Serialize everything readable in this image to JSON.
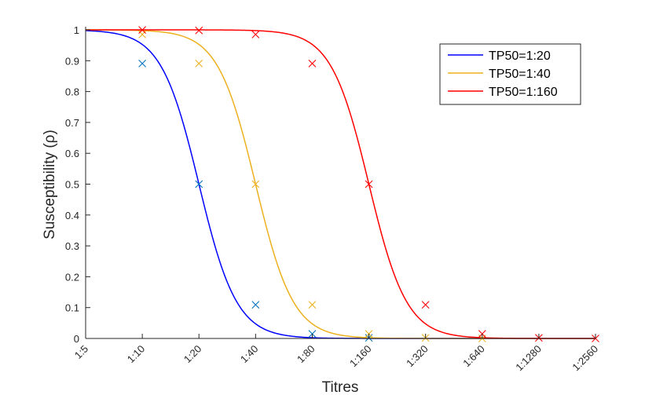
{
  "chart_data": {
    "type": "line",
    "xlabel": "Titres",
    "ylabel": "Susceptibility (ρ)",
    "ylim": [
      0,
      1
    ],
    "yticks": [
      0,
      0.1,
      0.2,
      0.3,
      0.4,
      0.5,
      0.6,
      0.7,
      0.8,
      0.9,
      1
    ],
    "x_scale": "log2",
    "categories": [
      "1:5",
      "1:10",
      "1:20",
      "1:40",
      "1:80",
      "1:160",
      "1:320",
      "1:640",
      "1:1280",
      "1:2560"
    ],
    "grid": false,
    "legend_position": "top-right",
    "series": [
      {
        "name": "TP50=1:20",
        "color": "#0000ff",
        "marker_color": "#0072bd",
        "tp50_index": 2,
        "marker_categories": [
          "1:10",
          "1:20",
          "1:40",
          "1:80",
          "1:160"
        ],
        "marker_values": [
          0.891,
          0.5,
          0.109,
          0.015,
          0.002
        ]
      },
      {
        "name": "TP50=1:40",
        "color": "#edb120",
        "marker_color": "#edb120",
        "tp50_index": 3,
        "marker_categories": [
          "1:10",
          "1:20",
          "1:40",
          "1:80",
          "1:160",
          "1:320",
          "1:640"
        ],
        "marker_values": [
          0.985,
          0.891,
          0.5,
          0.109,
          0.015,
          0.002,
          0.0
        ]
      },
      {
        "name": "TP50=1:160",
        "color": "#ff0000",
        "marker_color": "#ff0000",
        "tp50_index": 5,
        "marker_categories": [
          "1:10",
          "1:20",
          "1:40",
          "1:80",
          "1:160",
          "1:320",
          "1:640",
          "1:1280",
          "1:2560"
        ],
        "marker_values": [
          0.9997,
          0.998,
          0.985,
          0.891,
          0.5,
          0.109,
          0.015,
          0.002,
          0.0
        ]
      }
    ]
  }
}
